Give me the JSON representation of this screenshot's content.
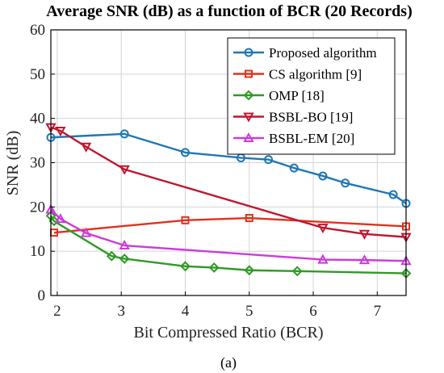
{
  "chart_data": {
    "type": "line",
    "title": "Average SNR (dB) as a function of BCR (20 Records)",
    "xlabel": "Bit Compressed Ratio (BCR)",
    "ylabel": "SNR (dB)",
    "xlim": [
      1.9,
      7.45
    ],
    "ylim": [
      0,
      60
    ],
    "xticks": [
      2,
      3,
      4,
      5,
      6,
      7
    ],
    "yticks": [
      0,
      10,
      20,
      30,
      40,
      50,
      60
    ],
    "grid": true,
    "legend_position": "top-right",
    "caption": "(a)",
    "series": [
      {
        "name": "Proposed algorithm",
        "color": "#1f77b4",
        "marker": "circle",
        "x": [
          1.9,
          3.05,
          4.0,
          4.87,
          5.3,
          5.7,
          6.15,
          6.5,
          7.25,
          7.45
        ],
        "y": [
          35.7,
          36.5,
          32.3,
          31.1,
          30.7,
          28.8,
          27.0,
          25.4,
          22.8,
          20.8
        ]
      },
      {
        "name": "CS algorithm [9]",
        "color": "#e0321e",
        "marker": "square",
        "x": [
          1.95,
          4.0,
          5.0,
          7.45
        ],
        "y": [
          14.2,
          17.0,
          17.5,
          15.6
        ]
      },
      {
        "name": "OMP [18]",
        "color": "#2f9a24",
        "marker": "diamond",
        "x": [
          1.9,
          1.95,
          2.85,
          3.05,
          4.0,
          4.45,
          5.0,
          5.75,
          7.45
        ],
        "y": [
          18.0,
          16.8,
          8.9,
          8.3,
          6.6,
          6.3,
          5.7,
          5.5,
          5.0
        ]
      },
      {
        "name": "BSBL-BO [19]",
        "color": "#c0162f",
        "marker": "triangle-down",
        "x": [
          1.9,
          2.05,
          2.45,
          3.05,
          6.15,
          6.8,
          7.45
        ],
        "y": [
          38.0,
          37.2,
          33.6,
          28.5,
          15.3,
          13.9,
          13.2
        ]
      },
      {
        "name": "BSBL-EM [20]",
        "color": "#cc3adc",
        "marker": "triangle-up",
        "x": [
          1.9,
          2.05,
          2.45,
          3.05,
          6.15,
          6.8,
          7.45
        ],
        "y": [
          19.4,
          17.3,
          14.1,
          11.3,
          8.1,
          8.0,
          7.8
        ]
      }
    ]
  }
}
